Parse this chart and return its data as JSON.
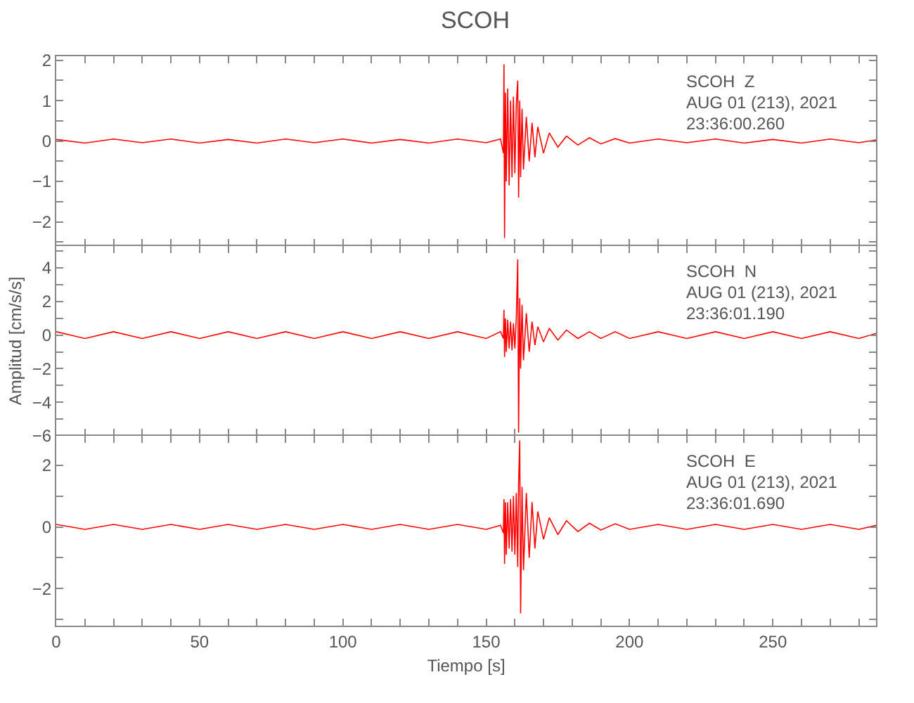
{
  "chart_data": [
    {
      "type": "line",
      "title": "SCOH",
      "tick_labels": "y",
      "annotations": [
        "SCOH  Z",
        "AUG 01 (213), 2021",
        "23:36:00.260"
      ],
      "x": [
        0,
        10,
        20,
        30,
        40,
        50,
        60,
        70,
        80,
        90,
        100,
        110,
        120,
        130,
        140,
        150,
        155,
        156,
        156.2,
        156.4,
        156.7,
        157,
        157.5,
        158,
        158.5,
        159,
        159.5,
        160,
        160.5,
        161,
        161.3,
        161.7,
        162,
        162.5,
        163,
        164,
        165,
        166,
        167,
        168,
        170,
        172,
        175,
        178,
        182,
        186,
        190,
        195,
        200,
        210,
        220,
        230,
        240,
        250,
        260,
        270,
        280,
        286
      ],
      "xlim": [
        0,
        286
      ],
      "xticks": [
        {
          "value": 0,
          "label": null
        },
        {
          "value": 10,
          "label": null
        },
        {
          "value": 20,
          "label": null
        },
        {
          "value": 30,
          "label": null
        },
        {
          "value": 40,
          "label": null
        },
        {
          "value": 50,
          "label": null
        },
        {
          "value": 60,
          "label": null
        },
        {
          "value": 70,
          "label": null
        },
        {
          "value": 80,
          "label": null
        },
        {
          "value": 90,
          "label": null
        },
        {
          "value": 100,
          "label": null
        },
        {
          "value": 110,
          "label": null
        },
        {
          "value": 120,
          "label": null
        },
        {
          "value": 130,
          "label": null
        },
        {
          "value": 140,
          "label": null
        },
        {
          "value": 150,
          "label": null
        },
        {
          "value": 160,
          "label": null
        },
        {
          "value": 170,
          "label": null
        },
        {
          "value": 180,
          "label": null
        },
        {
          "value": 190,
          "label": null
        },
        {
          "value": 200,
          "label": null
        },
        {
          "value": 210,
          "label": null
        },
        {
          "value": 220,
          "label": null
        },
        {
          "value": 230,
          "label": null
        },
        {
          "value": 240,
          "label": null
        },
        {
          "value": 250,
          "label": null
        },
        {
          "value": 260,
          "label": null
        },
        {
          "value": 270,
          "label": null
        },
        {
          "value": 280,
          "label": null
        }
      ],
      "ylim": [
        -2.6,
        2.1
      ],
      "yticks": [
        {
          "value": -2.5,
          "label": null
        },
        -2,
        {
          "value": -1.5,
          "label": null
        },
        -1,
        {
          "value": -0.5,
          "label": null
        },
        0,
        {
          "value": 0.5,
          "label": null
        },
        1,
        {
          "value": 1.5,
          "label": null
        },
        2
      ],
      "series": [
        {
          "color": "#ff0000",
          "values": [
            0.04,
            -0.05,
            0.05,
            -0.04,
            0.05,
            -0.05,
            0.04,
            -0.05,
            0.05,
            -0.04,
            0.05,
            -0.05,
            0.04,
            -0.05,
            0.05,
            -0.04,
            0.05,
            -0.3,
            1.9,
            -2.4,
            1.2,
            -1.0,
            1.3,
            -1.1,
            1.0,
            -0.9,
            1.1,
            -0.8,
            0.9,
            1.5,
            -1.4,
            1.0,
            -0.9,
            0.8,
            -0.7,
            0.6,
            -0.5,
            0.45,
            -0.4,
            0.35,
            -0.3,
            0.2,
            -0.15,
            0.12,
            -0.1,
            0.08,
            -0.07,
            0.06,
            -0.05,
            0.05,
            -0.04,
            0.05,
            -0.05,
            0.04,
            -0.05,
            0.05,
            -0.04,
            0.03
          ]
        }
      ]
    },
    {
      "type": "line",
      "ylabel": "Amplitud [cm/s/s]",
      "tick_labels": "y",
      "annotations": [
        "SCOH  N",
        "AUG 01 (213), 2021",
        "23:36:01.190"
      ],
      "x": [
        0,
        10,
        20,
        30,
        40,
        50,
        60,
        70,
        80,
        90,
        100,
        110,
        120,
        130,
        140,
        150,
        155,
        156,
        156.2,
        156.4,
        156.7,
        157,
        157.5,
        158,
        158.5,
        159,
        159.5,
        160,
        160.5,
        161,
        161.3,
        161.7,
        162,
        162.5,
        163,
        164,
        165,
        166,
        167,
        168,
        170,
        172,
        175,
        178,
        182,
        186,
        190,
        195,
        200,
        210,
        220,
        230,
        240,
        250,
        260,
        270,
        280,
        286
      ],
      "xlim": [
        0,
        286
      ],
      "xticks": [
        {
          "value": 0,
          "label": null
        },
        {
          "value": 10,
          "label": null
        },
        {
          "value": 20,
          "label": null
        },
        {
          "value": 30,
          "label": null
        },
        {
          "value": 40,
          "label": null
        },
        {
          "value": 50,
          "label": null
        },
        {
          "value": 60,
          "label": null
        },
        {
          "value": 70,
          "label": null
        },
        {
          "value": 80,
          "label": null
        },
        {
          "value": 90,
          "label": null
        },
        {
          "value": 100,
          "label": null
        },
        {
          "value": 110,
          "label": null
        },
        {
          "value": 120,
          "label": null
        },
        {
          "value": 130,
          "label": null
        },
        {
          "value": 140,
          "label": null
        },
        {
          "value": 150,
          "label": null
        },
        {
          "value": 160,
          "label": null
        },
        {
          "value": 170,
          "label": null
        },
        {
          "value": 180,
          "label": null
        },
        {
          "value": 190,
          "label": null
        },
        {
          "value": 200,
          "label": null
        },
        {
          "value": 210,
          "label": null
        },
        {
          "value": 220,
          "label": null
        },
        {
          "value": 230,
          "label": null
        },
        {
          "value": 240,
          "label": null
        },
        {
          "value": 250,
          "label": null
        },
        {
          "value": 260,
          "label": null
        },
        {
          "value": 270,
          "label": null
        },
        {
          "value": 280,
          "label": null
        }
      ],
      "ylim": [
        -6,
        5.3
      ],
      "yticks": [
        -6,
        {
          "value": -5,
          "label": null
        },
        -4,
        {
          "value": -3,
          "label": null
        },
        -2,
        {
          "value": -1,
          "label": null
        },
        0,
        {
          "value": 1,
          "label": null
        },
        2,
        {
          "value": 3,
          "label": null
        },
        4,
        {
          "value": 5,
          "label": null
        }
      ],
      "series": [
        {
          "color": "#ff0000",
          "values": [
            0.2,
            -0.2,
            0.2,
            -0.2,
            0.2,
            -0.2,
            0.2,
            -0.2,
            0.2,
            -0.2,
            0.2,
            -0.2,
            0.2,
            -0.2,
            0.2,
            -0.2,
            0.2,
            -0.2,
            1.5,
            -1.3,
            1.0,
            -1.0,
            0.9,
            -0.8,
            0.8,
            -0.9,
            0.7,
            -0.8,
            1.0,
            4.5,
            -5.8,
            2.2,
            -2.0,
            1.8,
            -1.5,
            1.3,
            -1.0,
            0.8,
            -0.6,
            0.5,
            -0.4,
            0.4,
            -0.3,
            0.3,
            -0.2,
            0.2,
            -0.2,
            0.2,
            -0.2,
            0.2,
            -0.2,
            0.2,
            -0.2,
            0.2,
            -0.2,
            0.2,
            -0.2,
            0.1
          ]
        }
      ]
    },
    {
      "type": "line",
      "xlabel": "Tiempo [s]",
      "annotations": [
        "SCOH  E",
        "AUG 01 (213), 2021",
        "23:36:01.690"
      ],
      "x": [
        0,
        10,
        20,
        30,
        40,
        50,
        60,
        70,
        80,
        90,
        100,
        110,
        120,
        130,
        140,
        150,
        155,
        156,
        156.2,
        156.4,
        156.7,
        157,
        157.5,
        158,
        158.5,
        159,
        159.5,
        160,
        160.5,
        161,
        161.3,
        161.7,
        162,
        162.5,
        163,
        164,
        165,
        166,
        167,
        168,
        170,
        172,
        175,
        178,
        182,
        186,
        190,
        195,
        200,
        210,
        220,
        230,
        240,
        250,
        260,
        270,
        280,
        286
      ],
      "xlim": [
        0,
        286
      ],
      "xticks": [
        0,
        {
          "value": 10,
          "label": null
        },
        {
          "value": 20,
          "label": null
        },
        {
          "value": 30,
          "label": null
        },
        {
          "value": 40,
          "label": null
        },
        50,
        {
          "value": 60,
          "label": null
        },
        {
          "value": 70,
          "label": null
        },
        {
          "value": 80,
          "label": null
        },
        {
          "value": 90,
          "label": null
        },
        100,
        {
          "value": 110,
          "label": null
        },
        {
          "value": 120,
          "label": null
        },
        {
          "value": 130,
          "label": null
        },
        {
          "value": 140,
          "label": null
        },
        150,
        {
          "value": 160,
          "label": null
        },
        {
          "value": 170,
          "label": null
        },
        {
          "value": 180,
          "label": null
        },
        {
          "value": 190,
          "label": null
        },
        200,
        {
          "value": 210,
          "label": null
        },
        {
          "value": 220,
          "label": null
        },
        {
          "value": 230,
          "label": null
        },
        {
          "value": 240,
          "label": null
        },
        250,
        {
          "value": 260,
          "label": null
        },
        {
          "value": 270,
          "label": null
        },
        {
          "value": 280,
          "label": null
        }
      ],
      "ylim": [
        -3.2,
        2.95
      ],
      "yticks": [
        {
          "value": -3,
          "label": null
        },
        -2,
        {
          "value": -1,
          "label": null
        },
        0,
        {
          "value": 1,
          "label": null
        },
        2
      ],
      "series": [
        {
          "color": "#ff0000",
          "values": [
            0.08,
            -0.08,
            0.08,
            -0.08,
            0.08,
            -0.08,
            0.08,
            -0.08,
            0.08,
            -0.08,
            0.08,
            -0.08,
            0.08,
            -0.08,
            0.08,
            -0.08,
            0.05,
            -0.2,
            0.9,
            -1.2,
            0.8,
            -0.9,
            0.8,
            -0.7,
            0.9,
            -0.8,
            1.0,
            -0.9,
            1.1,
            -1.3,
            1.4,
            2.8,
            -2.8,
            1.3,
            -1.4,
            1.1,
            -1.0,
            0.8,
            -0.7,
            0.5,
            -0.4,
            0.3,
            -0.25,
            0.2,
            -0.15,
            0.12,
            -0.1,
            0.1,
            -0.08,
            0.08,
            -0.08,
            0.08,
            -0.08,
            0.08,
            -0.08,
            0.08,
            -0.08,
            0.05
          ]
        }
      ]
    }
  ]
}
